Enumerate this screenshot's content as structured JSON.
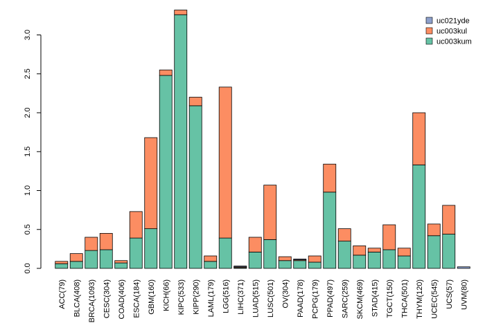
{
  "chart_data": {
    "type": "bar",
    "stacked": true,
    "title": "",
    "xlabel": "",
    "ylabel": "",
    "ylim": [
      0,
      3.3
    ],
    "yticks": [
      0.0,
      0.5,
      1.0,
      1.5,
      2.0,
      2.5,
      3.0
    ],
    "ytick_labels": [
      "0.0",
      "0.5",
      "1.0",
      "1.5",
      "2.0",
      "2.5",
      "3.0"
    ],
    "grid": false,
    "legend_position": "top-right",
    "categories": [
      "ACC(79)",
      "BLCA(408)",
      "BRCA(1093)",
      "CESC(304)",
      "COAD(406)",
      "ESCA(184)",
      "GBM(160)",
      "KICH(66)",
      "KIPC(533)",
      "KIPP(290)",
      "LAML(179)",
      "LGG(516)",
      "LIHC(371)",
      "LUAD(515)",
      "LUSC(501)",
      "OV(304)",
      "PAAD(178)",
      "PCPG(179)",
      "PPAD(497)",
      "SARC(259)",
      "SKCM(469)",
      "STAD(415)",
      "TGCT(150)",
      "THCA(501)",
      "THYM(120)",
      "UCEC(545)",
      "UCS(57)",
      "UVM(80)"
    ],
    "series": [
      {
        "name": "uc003kum",
        "color": "#66c2a5",
        "values": [
          0.06,
          0.09,
          0.23,
          0.24,
          0.07,
          0.39,
          0.51,
          2.48,
          3.26,
          2.09,
          0.09,
          0.39,
          0.01,
          0.21,
          0.37,
          0.1,
          0.1,
          0.08,
          0.98,
          0.35,
          0.17,
          0.21,
          0.24,
          0.16,
          1.33,
          0.42,
          0.44,
          0.0
        ]
      },
      {
        "name": "uc003kul",
        "color": "#fc8d62",
        "values": [
          0.03,
          0.1,
          0.17,
          0.21,
          0.03,
          0.34,
          1.17,
          0.07,
          0.06,
          0.11,
          0.07,
          1.94,
          0.01,
          0.19,
          0.7,
          0.05,
          0.01,
          0.08,
          0.36,
          0.16,
          0.12,
          0.05,
          0.32,
          0.1,
          0.67,
          0.15,
          0.37,
          0.0
        ]
      },
      {
        "name": "uc021yde",
        "color": "#8da0cb",
        "values": [
          0,
          0,
          0,
          0,
          0,
          0,
          0,
          0,
          0,
          0,
          0,
          0,
          0.01,
          0,
          0,
          0,
          0.01,
          0,
          0,
          0,
          0,
          0,
          0,
          0,
          0,
          0,
          0,
          0.02
        ]
      }
    ],
    "legend": [
      {
        "name": "uc021yde",
        "color": "#8da0cb"
      },
      {
        "name": "uc003kul",
        "color": "#fc8d62"
      },
      {
        "name": "uc003kum",
        "color": "#66c2a5"
      }
    ]
  }
}
